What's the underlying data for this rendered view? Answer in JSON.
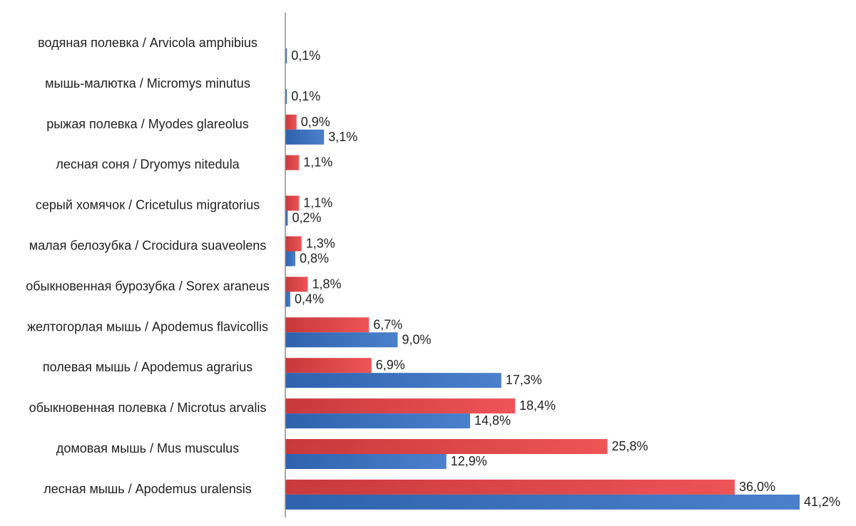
{
  "chart_data": {
    "type": "bar",
    "orientation": "horizontal",
    "categories": [
      "водяная полевка / Arvicola amphibius",
      "мышь-малютка / Micromys minutus",
      "рыжая полевка / Myodes glareolus",
      "лесная соня / Dryomys nitedula",
      "серый хомячок / Cricetulus migratorius",
      "малая белозубка / Crocidura suaveolens",
      "обыкновенная бурозубка / Sorex araneus",
      "желтогорлая мышь / Apodemus flavicollis",
      "полевая мышь / Apodemus agrarius",
      "обыкновенная полевка / Microtus arvalis",
      "домовая мышь / Mus musculus",
      "лесная мышь / Apodemus uralensis"
    ],
    "series": [
      {
        "color": "#e8474a",
        "values": [
          null,
          null,
          0.9,
          1.1,
          1.1,
          1.3,
          1.8,
          6.7,
          6.9,
          18.4,
          25.8,
          36.0
        ],
        "labels": [
          "",
          "",
          "0,9%",
          "1,1%",
          "1,1%",
          "1,3%",
          "1,8%",
          "6,7%",
          "6,9%",
          "18,4%",
          "25,8%",
          "36,0%"
        ]
      },
      {
        "color": "#3d73c0",
        "values": [
          0.1,
          0.1,
          3.1,
          null,
          0.2,
          0.8,
          0.4,
          9.0,
          17.3,
          14.8,
          12.9,
          41.2
        ],
        "labels": [
          "0,1%",
          "0,1%",
          "3,1%",
          "",
          "0,2%",
          "0,8%",
          "0,4%",
          "9,0%",
          "17,3%",
          "14,8%",
          "12,9%",
          "41,2%"
        ]
      }
    ],
    "xlim": [
      0,
      41.2
    ],
    "grid": false,
    "legend": "none",
    "value_format": "percent with comma decimal"
  }
}
